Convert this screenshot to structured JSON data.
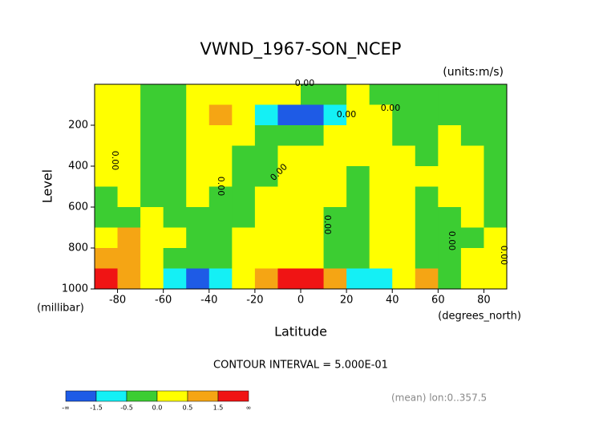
{
  "chart_data": {
    "type": "contour",
    "title": "VWND_1967-SON_NCEP",
    "units": "(units:m/s)",
    "x_label": "Latitude",
    "x_units": "(degrees_north)",
    "y_label": "Level",
    "y_units": "(millibar)",
    "x": [
      -85,
      -75,
      -65,
      -55,
      -45,
      -35,
      -25,
      -15,
      -5,
      5,
      15,
      25,
      35,
      45,
      55,
      65,
      75,
      85
    ],
    "y": [
      50,
      150,
      250,
      350,
      450,
      550,
      650,
      750,
      850,
      950
    ],
    "z": [
      [
        0.2,
        0.2,
        -0.2,
        -0.2,
        0.2,
        0.2,
        0.2,
        0.2,
        0.2,
        -0.2,
        -0.2,
        0.2,
        -0.2,
        -0.2,
        -0.2,
        -0.2,
        -0.2,
        -0.2
      ],
      [
        0.2,
        0.2,
        -0.2,
        -0.2,
        0.2,
        0.7,
        0.2,
        -0.7,
        -1.7,
        -1.7,
        -0.7,
        0.2,
        0.2,
        -0.2,
        -0.2,
        -0.2,
        -0.2,
        -0.2
      ],
      [
        0.2,
        0.2,
        -0.2,
        -0.2,
        0.2,
        0.2,
        0.2,
        -0.2,
        -0.2,
        -0.2,
        0.2,
        0.2,
        0.2,
        -0.2,
        -0.2,
        0.2,
        -0.2,
        -0.2
      ],
      [
        0.2,
        0.2,
        -0.2,
        -0.2,
        0.2,
        0.2,
        -0.2,
        -0.2,
        0.2,
        0.2,
        0.2,
        0.2,
        0.2,
        0.2,
        -0.2,
        0.2,
        0.2,
        -0.2
      ],
      [
        0.2,
        0.2,
        -0.2,
        -0.2,
        0.2,
        0.2,
        -0.2,
        -0.2,
        0.2,
        0.2,
        0.2,
        -0.2,
        0.2,
        0.2,
        0.2,
        0.2,
        0.2,
        -0.2
      ],
      [
        -0.2,
        0.2,
        -0.2,
        -0.2,
        0.2,
        -0.2,
        -0.2,
        0.2,
        0.2,
        0.2,
        0.2,
        -0.2,
        0.2,
        0.2,
        -0.2,
        0.2,
        0.2,
        -0.2
      ],
      [
        -0.2,
        -0.2,
        0.2,
        -0.2,
        -0.2,
        -0.2,
        -0.2,
        0.2,
        0.2,
        0.2,
        -0.2,
        -0.2,
        0.2,
        0.2,
        -0.2,
        -0.2,
        0.2,
        -0.2
      ],
      [
        0.2,
        0.7,
        0.2,
        0.2,
        -0.2,
        -0.2,
        0.2,
        0.2,
        0.2,
        0.2,
        -0.2,
        -0.2,
        0.2,
        0.2,
        -0.2,
        -0.2,
        -0.2,
        0.2
      ],
      [
        1.0,
        0.7,
        0.2,
        -0.2,
        -0.2,
        -0.2,
        0.2,
        0.2,
        0.2,
        0.2,
        -0.2,
        -0.2,
        0.2,
        0.2,
        -0.2,
        -0.2,
        0.2,
        0.2
      ],
      [
        1.7,
        0.7,
        0.2,
        -0.7,
        -1.7,
        -0.7,
        0.2,
        0.7,
        1.7,
        1.7,
        0.7,
        -0.7,
        -0.7,
        0.2,
        0.7,
        -0.2,
        0.2,
        0.2
      ]
    ],
    "xlim": [
      -90,
      90
    ],
    "ylim": [
      1000,
      0
    ],
    "xticks": [
      -80,
      -60,
      -40,
      -20,
      0,
      20,
      40,
      60,
      80
    ],
    "yticks": [
      200,
      400,
      600,
      800,
      1000
    ],
    "contour_labels": [
      "0.00",
      "0.00",
      "0.00",
      "0.00",
      "0.00",
      "0.00",
      "0.00",
      "0.00",
      "0.00"
    ],
    "colorbar_ticks": [
      "-∞",
      -1.5,
      -0.5,
      {
        "value": 0,
        "label": "0.0"
      },
      0.5,
      1.5,
      "∞"
    ],
    "colors": [
      "#1e5be6",
      "#14f0f5",
      "#3ccd32",
      "#ffff00",
      "#f5a514",
      "#f01414"
    ],
    "contour_interval": "CONTOUR INTERVAL = 5.000E-01",
    "footnote": "(mean) lon:0..357.5"
  }
}
